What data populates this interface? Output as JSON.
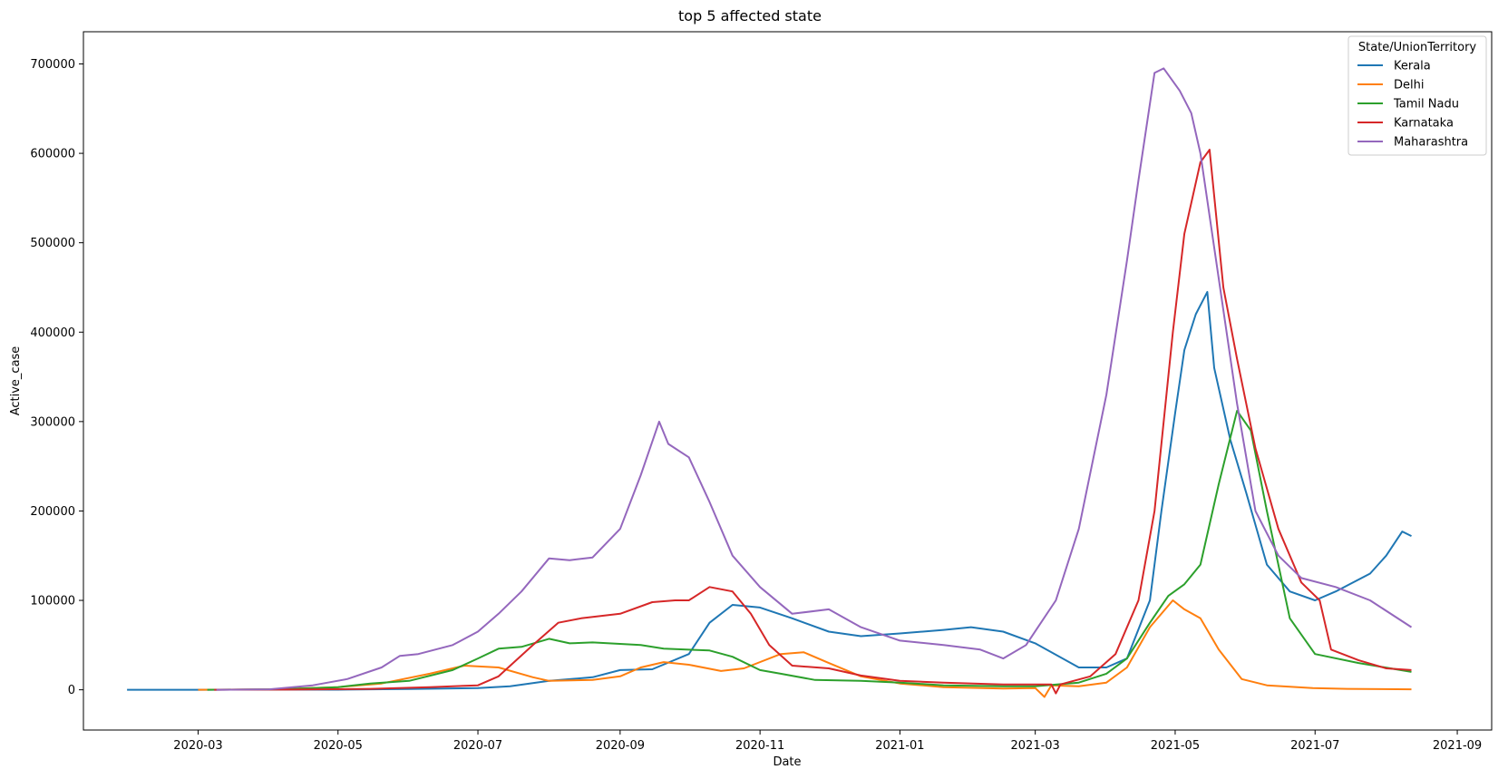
{
  "chart_data": {
    "type": "line",
    "title": "top 5 affected state",
    "xlabel": "Date",
    "ylabel": "Active_case",
    "x_ticks": [
      "2020-03",
      "2020-05",
      "2020-07",
      "2020-09",
      "2020-11",
      "2021-01",
      "2021-03",
      "2021-05",
      "2021-07",
      "2021-09"
    ],
    "y_ticks": [
      0,
      100000,
      200000,
      300000,
      400000,
      500000,
      600000,
      700000
    ],
    "xlim": [
      "2020-01-11",
      "2021-09-16"
    ],
    "ylim": [
      -45000,
      736000
    ],
    "grid": false,
    "legend": {
      "title": "State/UnionTerritory",
      "placement": "top-right"
    },
    "series": [
      {
        "name": "Kerala",
        "color": "#1f77b4",
        "points": [
          [
            "2020-01-30",
            0
          ],
          [
            "2020-03-01",
            0
          ],
          [
            "2020-04-01",
            200
          ],
          [
            "2020-05-01",
            100
          ],
          [
            "2020-06-01",
            800
          ],
          [
            "2020-07-01",
            2000
          ],
          [
            "2020-07-15",
            4000
          ],
          [
            "2020-08-01",
            10000
          ],
          [
            "2020-08-20",
            14000
          ],
          [
            "2020-09-01",
            22000
          ],
          [
            "2020-09-15",
            23000
          ],
          [
            "2020-10-01",
            40000
          ],
          [
            "2020-10-10",
            75000
          ],
          [
            "2020-10-20",
            95000
          ],
          [
            "2020-11-01",
            92000
          ],
          [
            "2020-11-15",
            80000
          ],
          [
            "2020-12-01",
            65000
          ],
          [
            "2020-12-15",
            60000
          ],
          [
            "2021-01-01",
            63000
          ],
          [
            "2021-01-20",
            67000
          ],
          [
            "2021-02-01",
            70000
          ],
          [
            "2021-02-15",
            65000
          ],
          [
            "2021-03-01",
            52000
          ],
          [
            "2021-03-20",
            25000
          ],
          [
            "2021-04-01",
            25000
          ],
          [
            "2021-04-10",
            35000
          ],
          [
            "2021-04-20",
            100000
          ],
          [
            "2021-04-25",
            200000
          ],
          [
            "2021-05-01",
            310000
          ],
          [
            "2021-05-05",
            380000
          ],
          [
            "2021-05-10",
            420000
          ],
          [
            "2021-05-15",
            445000
          ],
          [
            "2021-05-18",
            360000
          ],
          [
            "2021-05-25",
            280000
          ],
          [
            "2021-06-01",
            220000
          ],
          [
            "2021-06-10",
            140000
          ],
          [
            "2021-06-20",
            110000
          ],
          [
            "2021-07-01",
            100000
          ],
          [
            "2021-07-10",
            110000
          ],
          [
            "2021-07-25",
            130000
          ],
          [
            "2021-08-01",
            150000
          ],
          [
            "2021-08-08",
            177000
          ],
          [
            "2021-08-12",
            172000
          ]
        ]
      },
      {
        "name": "Delhi",
        "color": "#ff7f0e",
        "points": [
          [
            "2020-03-01",
            0
          ],
          [
            "2020-04-01",
            500
          ],
          [
            "2020-05-01",
            3000
          ],
          [
            "2020-05-20",
            7000
          ],
          [
            "2020-06-10",
            18000
          ],
          [
            "2020-06-25",
            27000
          ],
          [
            "2020-07-10",
            25000
          ],
          [
            "2020-07-25",
            14000
          ],
          [
            "2020-08-01",
            10000
          ],
          [
            "2020-08-20",
            11000
          ],
          [
            "2020-09-01",
            15000
          ],
          [
            "2020-09-10",
            25000
          ],
          [
            "2020-09-20",
            31000
          ],
          [
            "2020-10-01",
            28000
          ],
          [
            "2020-10-15",
            21000
          ],
          [
            "2020-10-25",
            24000
          ],
          [
            "2020-11-10",
            40000
          ],
          [
            "2020-11-20",
            42000
          ],
          [
            "2020-12-01",
            30000
          ],
          [
            "2020-12-15",
            15000
          ],
          [
            "2021-01-01",
            7000
          ],
          [
            "2021-01-20",
            3000
          ],
          [
            "2021-02-15",
            1500
          ],
          [
            "2021-03-01",
            2000
          ],
          [
            "2021-03-05",
            -8000
          ],
          [
            "2021-03-08",
            5000
          ],
          [
            "2021-03-20",
            4000
          ],
          [
            "2021-04-01",
            8000
          ],
          [
            "2021-04-10",
            25000
          ],
          [
            "2021-04-20",
            70000
          ],
          [
            "2021-04-30",
            100000
          ],
          [
            "2021-05-05",
            90000
          ],
          [
            "2021-05-12",
            80000
          ],
          [
            "2021-05-20",
            45000
          ],
          [
            "2021-05-30",
            12000
          ],
          [
            "2021-06-10",
            5000
          ],
          [
            "2021-06-30",
            2000
          ],
          [
            "2021-07-15",
            1000
          ],
          [
            "2021-08-12",
            500
          ]
        ]
      },
      {
        "name": "Tamil Nadu",
        "color": "#2ca02c",
        "points": [
          [
            "2020-03-05",
            0
          ],
          [
            "2020-04-05",
            500
          ],
          [
            "2020-05-01",
            3000
          ],
          [
            "2020-05-15",
            7000
          ],
          [
            "2020-06-01",
            10000
          ],
          [
            "2020-06-20",
            22000
          ],
          [
            "2020-07-01",
            35000
          ],
          [
            "2020-07-10",
            46000
          ],
          [
            "2020-07-20",
            48000
          ],
          [
            "2020-08-01",
            57000
          ],
          [
            "2020-08-10",
            52000
          ],
          [
            "2020-08-20",
            53000
          ],
          [
            "2020-09-10",
            50000
          ],
          [
            "2020-09-20",
            46000
          ],
          [
            "2020-10-10",
            44000
          ],
          [
            "2020-10-20",
            37000
          ],
          [
            "2020-11-01",
            22000
          ],
          [
            "2020-11-10",
            18000
          ],
          [
            "2020-11-25",
            11000
          ],
          [
            "2020-12-15",
            10000
          ],
          [
            "2021-01-01",
            8000
          ],
          [
            "2021-01-20",
            5000
          ],
          [
            "2021-02-15",
            4000
          ],
          [
            "2021-03-01",
            4000
          ],
          [
            "2021-03-20",
            8000
          ],
          [
            "2021-04-01",
            18000
          ],
          [
            "2021-04-10",
            35000
          ],
          [
            "2021-04-20",
            75000
          ],
          [
            "2021-04-28",
            105000
          ],
          [
            "2021-05-05",
            118000
          ],
          [
            "2021-05-12",
            140000
          ],
          [
            "2021-05-20",
            230000
          ],
          [
            "2021-05-28",
            312000
          ],
          [
            "2021-06-03",
            290000
          ],
          [
            "2021-06-10",
            200000
          ],
          [
            "2021-06-20",
            80000
          ],
          [
            "2021-07-01",
            40000
          ],
          [
            "2021-07-20",
            30000
          ],
          [
            "2021-08-12",
            20000
          ]
        ]
      },
      {
        "name": "Karnataka",
        "color": "#d62728",
        "points": [
          [
            "2020-03-08",
            0
          ],
          [
            "2020-04-10",
            200
          ],
          [
            "2020-05-15",
            1000
          ],
          [
            "2020-06-10",
            3000
          ],
          [
            "2020-07-01",
            5000
          ],
          [
            "2020-07-10",
            15000
          ],
          [
            "2020-07-25",
            50000
          ],
          [
            "2020-08-05",
            75000
          ],
          [
            "2020-08-15",
            80000
          ],
          [
            "2020-09-01",
            85000
          ],
          [
            "2020-09-15",
            98000
          ],
          [
            "2020-09-25",
            100000
          ],
          [
            "2020-10-01",
            100000
          ],
          [
            "2020-10-10",
            115000
          ],
          [
            "2020-10-20",
            110000
          ],
          [
            "2020-10-28",
            85000
          ],
          [
            "2020-11-05",
            50000
          ],
          [
            "2020-11-15",
            27000
          ],
          [
            "2020-12-01",
            24000
          ],
          [
            "2020-12-15",
            16000
          ],
          [
            "2021-01-01",
            10000
          ],
          [
            "2021-01-20",
            8000
          ],
          [
            "2021-02-15",
            6000
          ],
          [
            "2021-03-08",
            6000
          ],
          [
            "2021-03-10",
            -4000
          ],
          [
            "2021-03-12",
            6000
          ],
          [
            "2021-03-25",
            15000
          ],
          [
            "2021-04-05",
            40000
          ],
          [
            "2021-04-15",
            100000
          ],
          [
            "2021-04-22",
            200000
          ],
          [
            "2021-04-30",
            400000
          ],
          [
            "2021-05-05",
            510000
          ],
          [
            "2021-05-12",
            590000
          ],
          [
            "2021-05-16",
            604000
          ],
          [
            "2021-05-22",
            450000
          ],
          [
            "2021-05-28",
            370000
          ],
          [
            "2021-06-05",
            270000
          ],
          [
            "2021-06-15",
            180000
          ],
          [
            "2021-06-25",
            120000
          ],
          [
            "2021-07-03",
            100000
          ],
          [
            "2021-07-08",
            45000
          ],
          [
            "2021-07-20",
            33000
          ],
          [
            "2021-08-01",
            24000
          ],
          [
            "2021-08-12",
            22000
          ]
        ]
      },
      {
        "name": "Maharashtra",
        "color": "#9467bd",
        "points": [
          [
            "2020-03-09",
            0
          ],
          [
            "2020-04-01",
            500
          ],
          [
            "2020-04-20",
            5000
          ],
          [
            "2020-05-05",
            12000
          ],
          [
            "2020-05-20",
            25000
          ],
          [
            "2020-05-28",
            38000
          ],
          [
            "2020-06-05",
            40000
          ],
          [
            "2020-06-20",
            50000
          ],
          [
            "2020-07-01",
            65000
          ],
          [
            "2020-07-10",
            85000
          ],
          [
            "2020-07-20",
            110000
          ],
          [
            "2020-08-01",
            147000
          ],
          [
            "2020-08-10",
            145000
          ],
          [
            "2020-08-20",
            148000
          ],
          [
            "2020-09-01",
            180000
          ],
          [
            "2020-09-10",
            240000
          ],
          [
            "2020-09-18",
            300000
          ],
          [
            "2020-09-22",
            275000
          ],
          [
            "2020-10-01",
            260000
          ],
          [
            "2020-10-10",
            210000
          ],
          [
            "2020-10-20",
            150000
          ],
          [
            "2020-11-01",
            115000
          ],
          [
            "2020-11-15",
            85000
          ],
          [
            "2020-12-01",
            90000
          ],
          [
            "2020-12-15",
            70000
          ],
          [
            "2021-01-01",
            55000
          ],
          [
            "2021-01-20",
            50000
          ],
          [
            "2021-02-05",
            45000
          ],
          [
            "2021-02-15",
            35000
          ],
          [
            "2021-02-25",
            50000
          ],
          [
            "2021-03-10",
            100000
          ],
          [
            "2021-03-20",
            180000
          ],
          [
            "2021-04-01",
            330000
          ],
          [
            "2021-04-10",
            480000
          ],
          [
            "2021-04-15",
            570000
          ],
          [
            "2021-04-22",
            690000
          ],
          [
            "2021-04-26",
            695000
          ],
          [
            "2021-05-03",
            670000
          ],
          [
            "2021-05-08",
            645000
          ],
          [
            "2021-05-12",
            600000
          ],
          [
            "2021-05-20",
            460000
          ],
          [
            "2021-05-28",
            320000
          ],
          [
            "2021-06-05",
            200000
          ],
          [
            "2021-06-15",
            150000
          ],
          [
            "2021-06-25",
            125000
          ],
          [
            "2021-07-10",
            115000
          ],
          [
            "2021-07-25",
            100000
          ],
          [
            "2021-08-12",
            70000
          ]
        ]
      }
    ]
  }
}
